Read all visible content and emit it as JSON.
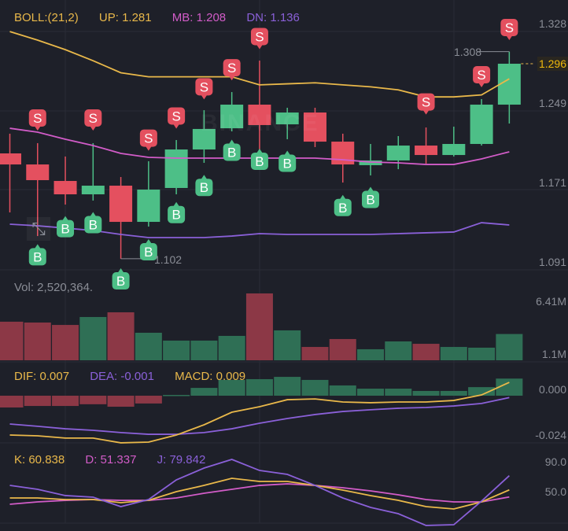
{
  "colors": {
    "background": "#1e2029",
    "up": "#4dbf87",
    "down": "#e4505f",
    "vol_up": "#2f6f55",
    "vol_down": "#8c3846",
    "boll_up": "#e9b84a",
    "boll_mb": "#d25cc8",
    "boll_dn": "#8a60d8",
    "dif": "#e9b84a",
    "dea": "#8a60d8",
    "k": "#e9b84a",
    "d": "#d25cc8",
    "j": "#8a60d8",
    "grid": "#2a2c36"
  },
  "watermark": "BINANCE",
  "icons": {
    "expand": "expand-arrows-icon"
  },
  "chart_data": [
    {
      "type": "candlestick",
      "title": "BOLL:(21,2)",
      "legend": {
        "boll": "BOLL:(21,2)",
        "up": "UP: 1.281",
        "mb": "MB: 1.208",
        "dn": "DN: 1.136"
      },
      "y_ticks": [
        "1.328",
        "1.249",
        "1.171",
        "1.091"
      ],
      "y_tick_values": [
        1.328,
        1.249,
        1.171,
        1.091
      ],
      "current_price": "1.296",
      "high_label": "1.308",
      "low_label": "1.102",
      "ohlc": [
        [
          1.2068,
          1.2264,
          1.1481,
          1.1958
        ],
        [
          1.1958,
          1.217,
          1.1246,
          1.1802
        ],
        [
          1.1794,
          1.2037,
          1.1559,
          1.1661
        ],
        [
          1.1661,
          1.217,
          1.1599,
          1.1747
        ],
        [
          1.1747,
          1.1833,
          1.102,
          1.1387
        ],
        [
          1.1387,
          1.199,
          1.134,
          1.1708
        ],
        [
          1.1724,
          1.2201,
          1.1661,
          1.2107
        ],
        [
          1.2107,
          1.2498,
          1.1974,
          1.2311
        ],
        [
          1.2318,
          1.2678,
          1.2287,
          1.2553
        ],
        [
          1.2553,
          1.2991,
          1.2029,
          1.235
        ],
        [
          1.2357,
          1.2522,
          1.2209,
          1.2475
        ],
        [
          1.2475,
          1.2522,
          1.2131,
          1.2185
        ],
        [
          1.2185,
          1.2264,
          1.1778,
          1.1958
        ],
        [
          1.1951,
          1.2162,
          1.1849,
          1.1998
        ],
        [
          1.1998,
          1.224,
          1.1911,
          1.2146
        ],
        [
          1.2146,
          1.2326,
          1.1966,
          1.2052
        ],
        [
          1.2052,
          1.2334,
          1.2037,
          1.2162
        ],
        [
          1.2162,
          1.2608,
          1.2146,
          1.2553
        ],
        [
          1.2553,
          1.308,
          1.2365,
          1.296
        ]
      ],
      "boll_up": [
        1.328,
        1.3195,
        1.31,
        1.299,
        1.287,
        1.283,
        1.283,
        1.283,
        1.283,
        1.275,
        1.276,
        1.277,
        1.275,
        1.273,
        1.27,
        1.263,
        1.263,
        1.265,
        1.281
      ],
      "boll_mb": [
        1.2318,
        1.2279,
        1.2209,
        1.2146,
        1.2068,
        1.2029,
        1.2021,
        1.2021,
        1.2021,
        1.2021,
        1.2021,
        1.2021,
        1.2005,
        1.1982,
        1.1974,
        1.1958,
        1.1958,
        1.2013,
        1.2084
      ],
      "boll_dn": [
        1.1364,
        1.1348,
        1.1325,
        1.1301,
        1.1262,
        1.1231,
        1.1231,
        1.1231,
        1.1246,
        1.127,
        1.1262,
        1.1262,
        1.1262,
        1.1262,
        1.127,
        1.1278,
        1.1286,
        1.1379,
        1.1356
      ],
      "signals": [
        {
          "type": "S",
          "index": 1,
          "price": 1.242
        },
        {
          "type": "S",
          "index": 3,
          "price": 1.242
        },
        {
          "type": "S",
          "index": 5,
          "price": 1.222
        },
        {
          "type": "S",
          "index": 6,
          "price": 1.244
        },
        {
          "type": "S",
          "index": 7,
          "price": 1.273
        },
        {
          "type": "S",
          "index": 8,
          "price": 1.292
        },
        {
          "type": "S",
          "index": 9,
          "price": 1.323
        },
        {
          "type": "S",
          "index": 15,
          "price": 1.258
        },
        {
          "type": "S",
          "index": 17,
          "price": 1.285
        },
        {
          "type": "S",
          "index": 18,
          "price": 1.332
        },
        {
          "type": "B",
          "index": 1,
          "price": 1.104
        },
        {
          "type": "B",
          "index": 2,
          "price": 1.132
        },
        {
          "type": "B",
          "index": 3,
          "price": 1.136
        },
        {
          "type": "B",
          "index": 4,
          "price": 1.08
        },
        {
          "type": "B",
          "index": 5,
          "price": 1.109
        },
        {
          "type": "B",
          "index": 6,
          "price": 1.146
        },
        {
          "type": "B",
          "index": 7,
          "price": 1.173
        },
        {
          "type": "B",
          "index": 8,
          "price": 1.208
        },
        {
          "type": "B",
          "index": 9,
          "price": 1.199
        },
        {
          "type": "B",
          "index": 10,
          "price": 1.197
        },
        {
          "type": "B",
          "index": 12,
          "price": 1.153
        },
        {
          "type": "B",
          "index": 13,
          "price": 1.161
        }
      ]
    },
    {
      "type": "bar",
      "legend": {
        "vol": "Vol: 2,520,364."
      },
      "y_ticks": [
        "6.41M",
        "1.1M"
      ],
      "unit": "M",
      "values": [
        3.7,
        3.62,
        3.39,
        4.15,
        4.6,
        2.64,
        1.89,
        1.89,
        2.34,
        6.41,
        2.87,
        1.28,
        2.04,
        1.06,
        1.81,
        1.58,
        1.28,
        1.21,
        2.52
      ]
    },
    {
      "type": "bar+line",
      "legend": {
        "dif": "DIF: 0.007",
        "dea": "DEA: -0.001",
        "macd": "MACD: 0.009"
      },
      "y_ticks": [
        "0.000",
        "-0.024"
      ],
      "macd": [
        -0.0062,
        -0.0054,
        -0.0054,
        -0.0045,
        -0.0058,
        -0.0041,
        0.0004,
        0.0041,
        0.0083,
        0.0087,
        0.0099,
        0.0083,
        0.0054,
        0.0037,
        0.0037,
        0.0025,
        0.0025,
        0.0045,
        0.009
      ],
      "dif": [
        -0.0207,
        -0.0211,
        -0.0223,
        -0.0223,
        -0.0248,
        -0.0244,
        -0.0207,
        -0.0153,
        -0.0087,
        -0.0058,
        -0.0021,
        -0.0017,
        -0.0033,
        -0.0037,
        -0.0033,
        -0.0033,
        -0.0025,
        0.0004,
        0.007
      ],
      "dea": [
        -0.0149,
        -0.0161,
        -0.0174,
        -0.0182,
        -0.0194,
        -0.0203,
        -0.0203,
        -0.0194,
        -0.0174,
        -0.0145,
        -0.012,
        -0.0099,
        -0.0083,
        -0.0074,
        -0.0066,
        -0.0062,
        -0.0054,
        -0.0041,
        -0.001
      ]
    },
    {
      "type": "line",
      "legend": {
        "k": "K: 60.838",
        "d": "D: 51.337",
        "j": "J: 79.842"
      },
      "y_ticks": [
        "90.0",
        "50.0"
      ],
      "k": [
        50,
        50,
        47.9,
        47.9,
        43.7,
        46.8,
        58.4,
        66.8,
        76.3,
        72.1,
        72.1,
        66.8,
        60.5,
        53.2,
        46.8,
        38.4,
        35.3,
        44.7,
        60.8
      ],
      "d": [
        41.6,
        44.7,
        46.8,
        47.9,
        46.8,
        46.8,
        50,
        56.3,
        61.6,
        66.8,
        68.9,
        66.8,
        63.7,
        59.5,
        54.2,
        47.9,
        44.7,
        44.7,
        51.3
      ],
      "j": [
        66.8,
        61.6,
        53.2,
        51.1,
        38.4,
        47.9,
        74.2,
        90,
        101.6,
        86.8,
        81.6,
        66.8,
        50,
        37.4,
        28.9,
        13.2,
        14.2,
        45.8,
        79.8
      ]
    }
  ]
}
